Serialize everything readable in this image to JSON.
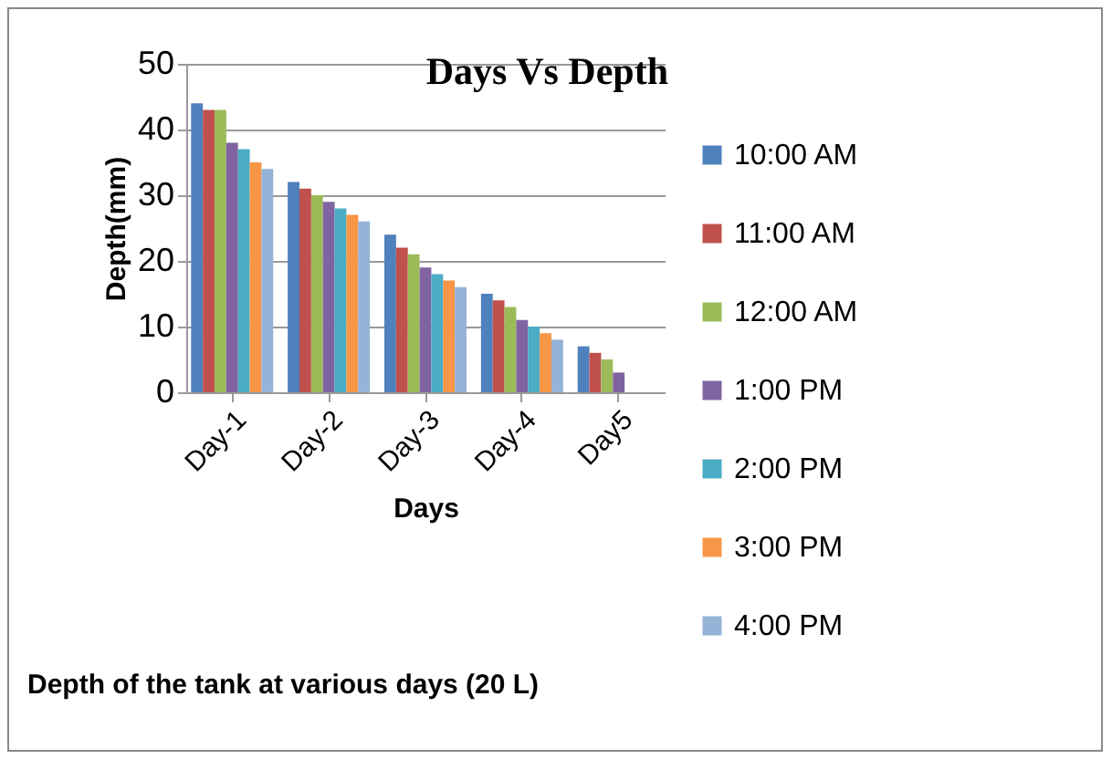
{
  "chart_data": {
    "type": "bar",
    "title": "Days Vs Depth",
    "xlabel": "Days",
    "ylabel": "Depth(mm)",
    "annotations": [
      "Depth of the tank at various days (20 L)"
    ],
    "categories": [
      "Day-1",
      "Day-2",
      "Day-3",
      "Day-4",
      "Day5"
    ],
    "series": [
      {
        "name": "10:00 AM",
        "color": "#4f81bd",
        "values": [
          44,
          32,
          24,
          15,
          7
        ]
      },
      {
        "name": "11:00 AM",
        "color": "#c0504d",
        "values": [
          43,
          31,
          22,
          14,
          6
        ]
      },
      {
        "name": "12:00 AM",
        "color": "#9bbb59",
        "values": [
          43,
          30,
          21,
          13,
          5
        ]
      },
      {
        "name": "1:00 PM",
        "color": "#8064a2",
        "values": [
          38,
          29,
          19,
          11,
          3
        ]
      },
      {
        "name": "2:00 PM",
        "color": "#4bacc6",
        "values": [
          37,
          28,
          18,
          10,
          null
        ]
      },
      {
        "name": "3:00 PM",
        "color": "#f79646",
        "values": [
          35,
          27,
          17,
          9,
          null
        ]
      },
      {
        "name": "4:00 PM",
        "color": "#95b3d7",
        "values": [
          34,
          26,
          16,
          8,
          null
        ]
      }
    ],
    "ylim": [
      0,
      50
    ],
    "yticks": [
      0,
      10,
      20,
      30,
      40,
      50
    ],
    "grid": "y",
    "legend": "right"
  }
}
